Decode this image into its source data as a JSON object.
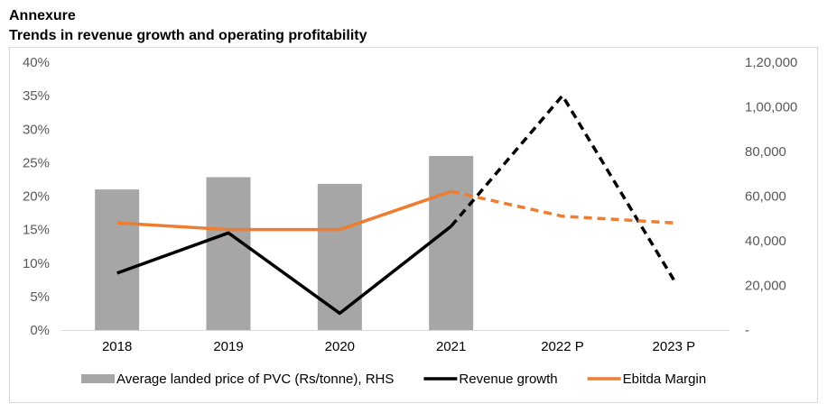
{
  "header": {
    "title": "Annexure",
    "subtitle": "Trends in revenue growth and operating profitability"
  },
  "chart_data": {
    "type": "bar+line",
    "categories": [
      "2018",
      "2019",
      "2020",
      "2021",
      "2022 P",
      "2023 P"
    ],
    "left_axis": {
      "range": [
        0,
        40
      ],
      "ticks": [
        0,
        5,
        10,
        15,
        20,
        25,
        30,
        35,
        40
      ],
      "tick_labels": [
        "0%",
        "5%",
        "10%",
        "15%",
        "20%",
        "25%",
        "30%",
        "35%",
        "40%"
      ]
    },
    "right_axis": {
      "range": [
        0,
        120000
      ],
      "ticks": [
        0,
        20000,
        40000,
        60000,
        80000,
        100000,
        120000
      ],
      "tick_labels": [
        "-",
        "20,000",
        "40,000",
        "60,000",
        "80,000",
        "1,00,000",
        "1,20,000"
      ]
    },
    "series": [
      {
        "name": "Average landed price of PVC (Rs/tonne), RHS",
        "type": "bar",
        "axis": "right",
        "color": "#a6a6a6",
        "values": [
          63000,
          68500,
          65500,
          78000,
          null,
          null
        ]
      },
      {
        "name": "Revenue growth",
        "type": "line",
        "axis": "left",
        "color": "#000000",
        "values": [
          8.5,
          14.5,
          2.5,
          15.5,
          35,
          7.5
        ],
        "projected_from_index": 3
      },
      {
        "name": "Ebitda Margin",
        "type": "line",
        "axis": "left",
        "color": "#ed7d31",
        "values": [
          16,
          15,
          15,
          20.7,
          17,
          16
        ],
        "projected_from_index": 3
      }
    ],
    "legend_position": "bottom"
  }
}
